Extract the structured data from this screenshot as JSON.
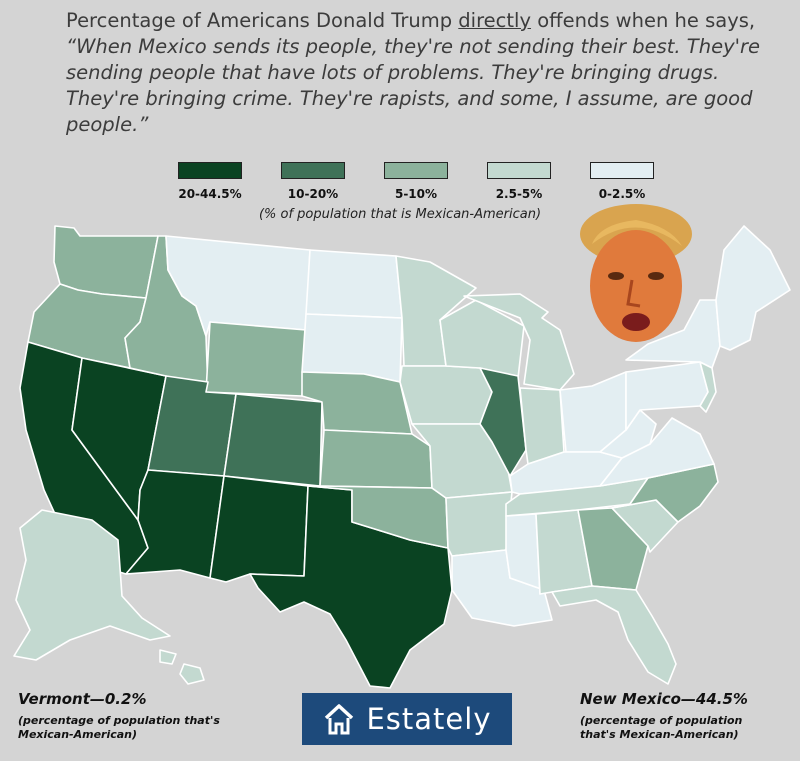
{
  "title": {
    "prefix": "Percentage of Americans Donald Trump ",
    "emphasis": "directly",
    "middle": " offends when he says, ",
    "quote": "“When Mexico sends its people, they're not sending their best. They're sending people that have lots of problems. They're bringing drugs. They're bringing crime. They're rapists, and some, I assume, are good people.”"
  },
  "legend": {
    "items": [
      {
        "label": "20-44.5%",
        "color": "#0a4322"
      },
      {
        "label": "10-20%",
        "color": "#3f7258"
      },
      {
        "label": "5-10%",
        "color": "#8cb29c"
      },
      {
        "label": "2.5-5%",
        "color": "#c3d9d0"
      },
      {
        "label": "0-2.5%",
        "color": "#e3eef2"
      }
    ],
    "note": "(% of population that is Mexican-American)"
  },
  "map": {
    "states": [
      {
        "id": "WA",
        "tier": 2
      },
      {
        "id": "OR",
        "tier": 2
      },
      {
        "id": "CA",
        "tier": 0
      },
      {
        "id": "NV",
        "tier": 0
      },
      {
        "id": "ID",
        "tier": 2
      },
      {
        "id": "MT",
        "tier": 4
      },
      {
        "id": "WY",
        "tier": 2
      },
      {
        "id": "UT",
        "tier": 1
      },
      {
        "id": "CO",
        "tier": 1
      },
      {
        "id": "AZ",
        "tier": 0
      },
      {
        "id": "NM",
        "tier": 0
      },
      {
        "id": "TX",
        "tier": 0
      },
      {
        "id": "ND",
        "tier": 4
      },
      {
        "id": "SD",
        "tier": 4
      },
      {
        "id": "NE",
        "tier": 2
      },
      {
        "id": "KS",
        "tier": 2
      },
      {
        "id": "OK",
        "tier": 2
      },
      {
        "id": "MN",
        "tier": 3
      },
      {
        "id": "IA",
        "tier": 3
      },
      {
        "id": "MO",
        "tier": 3
      },
      {
        "id": "AR",
        "tier": 3
      },
      {
        "id": "LA",
        "tier": 4
      },
      {
        "id": "WI",
        "tier": 3
      },
      {
        "id": "IL",
        "tier": 1
      },
      {
        "id": "MI",
        "tier": 3
      },
      {
        "id": "IN",
        "tier": 3
      },
      {
        "id": "OH",
        "tier": 4
      },
      {
        "id": "KY",
        "tier": 4
      },
      {
        "id": "TN",
        "tier": 3
      },
      {
        "id": "MS",
        "tier": 4
      },
      {
        "id": "AL",
        "tier": 3
      },
      {
        "id": "GA",
        "tier": 2
      },
      {
        "id": "FL",
        "tier": 3
      },
      {
        "id": "SC",
        "tier": 3
      },
      {
        "id": "NC",
        "tier": 2
      },
      {
        "id": "VA",
        "tier": 4
      },
      {
        "id": "WV",
        "tier": 4
      },
      {
        "id": "PA",
        "tier": 4
      },
      {
        "id": "NY",
        "tier": 4
      },
      {
        "id": "NJ",
        "tier": 3
      },
      {
        "id": "NE-region",
        "tier": 4
      },
      {
        "id": "AK",
        "tier": 3
      },
      {
        "id": "HI",
        "tier": 3
      }
    ]
  },
  "stats": {
    "left_head": "Vermont—0.2%",
    "left_sub": "(percentage of population that's Mexican-American)",
    "right_head": "New Mexico—44.5%",
    "right_sub": "(percentage of population that's Mexican-American)"
  },
  "brand": {
    "name": "Estately",
    "icon": "house-icon"
  },
  "photo": {
    "icon": "portrait-photo"
  }
}
